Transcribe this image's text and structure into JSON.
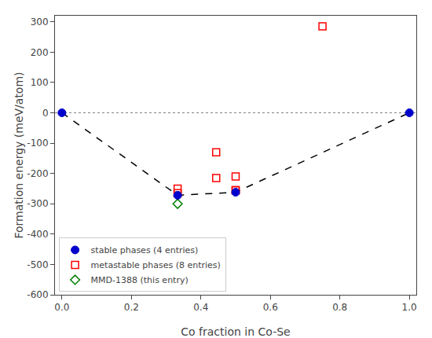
{
  "chart_data": {
    "type": "scatter",
    "xlabel": "Co fraction in Co-Se",
    "ylabel": "Formation energy (meV/atom)",
    "xlim": [
      -0.02,
      1.02
    ],
    "ylim": [
      -600,
      320
    ],
    "xticks": [
      {
        "value": 0,
        "label": "0.0"
      },
      0.2,
      0.4,
      0.6,
      0.8,
      {
        "value": 1,
        "label": "1.0"
      }
    ],
    "yticks": [
      -600,
      -500,
      -400,
      -300,
      -200,
      -100,
      0,
      100,
      200,
      300
    ],
    "grid": false,
    "legend": "lower left",
    "hlines": [
      {
        "y": 0,
        "color": "gray",
        "line_style": "dotted"
      }
    ],
    "series": [
      {
        "name": "stable phases (4 entries)",
        "type": "scatter",
        "marker": "circle",
        "color": "#0000cc",
        "x": [
          0.0,
          0.333,
          0.5,
          1.0
        ],
        "values": [
          0.0,
          -272,
          -262,
          0.0
        ]
      },
      {
        "name": "metastable phases (8 entries)",
        "type": "scatter",
        "marker": "square-open",
        "color": "red",
        "x": [
          0.333,
          0.333,
          0.444,
          0.444,
          0.5,
          0.5,
          0.75,
          0.5
        ],
        "values": [
          -250,
          -265,
          -215,
          -130,
          -210,
          -255,
          285,
          -255
        ]
      },
      {
        "name": "MMD-1388 (this entry)",
        "type": "scatter",
        "marker": "diamond-open",
        "color": "green",
        "x": [
          0.333
        ],
        "values": [
          -300
        ]
      },
      {
        "type": "line",
        "line_style": "dashed",
        "color": "black",
        "x": [
          0.0,
          0.333,
          0.5,
          1.0
        ],
        "values": [
          0.0,
          -272,
          -262,
          0.0
        ]
      }
    ]
  }
}
